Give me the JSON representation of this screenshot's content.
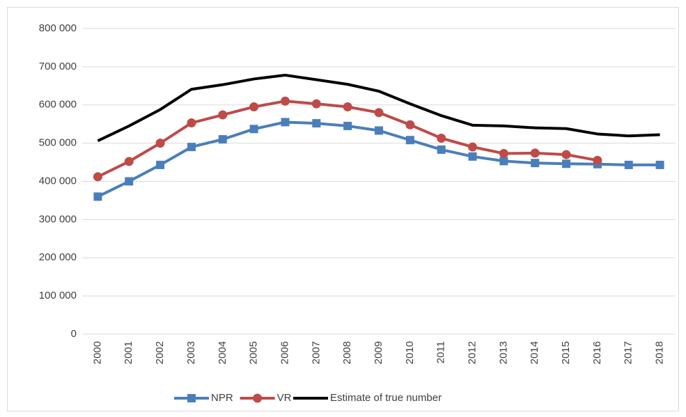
{
  "chart_data": {
    "type": "line",
    "categories": [
      "2000",
      "2001",
      "2002",
      "2003",
      "2004",
      "2005",
      "2006",
      "2007",
      "2008",
      "2009",
      "2010",
      "2011",
      "2012",
      "2013",
      "2014",
      "2015",
      "2016",
      "2017",
      "2018"
    ],
    "series": [
      {
        "name": "NPR",
        "color": "#4a7ebb",
        "marker": "square",
        "values": [
          360000,
          400000,
          443000,
          490000,
          510000,
          537000,
          555000,
          552000,
          545000,
          533000,
          508000,
          483000,
          465000,
          453000,
          448000,
          446000,
          445000,
          443000,
          443000
        ]
      },
      {
        "name": "VR",
        "color": "#be4b48",
        "marker": "circle",
        "values": [
          412000,
          452000,
          500000,
          553000,
          574000,
          595000,
          610000,
          603000,
          595000,
          580000,
          548000,
          513000,
          490000,
          473000,
          474000,
          470000,
          455000,
          null,
          null
        ]
      },
      {
        "name": "Estimate of true number",
        "color": "#000000",
        "marker": "none",
        "values": [
          506000,
          545000,
          588000,
          641000,
          653000,
          668000,
          678000,
          666000,
          654000,
          636000,
          603000,
          572000,
          547000,
          545000,
          540000,
          538000,
          524000,
          519000,
          522000
        ]
      }
    ],
    "ylim": [
      0,
      800000
    ],
    "yticks": [
      0,
      {
        "value": 100000,
        "label": "100 000"
      },
      {
        "value": 200000,
        "label": "200 000"
      },
      {
        "value": 300000,
        "label": "300 000"
      },
      {
        "value": 400000,
        "label": "400 000"
      },
      {
        "value": 500000,
        "label": "500 000"
      },
      {
        "value": 600000,
        "label": "600 000"
      },
      {
        "value": 700000,
        "label": "700 000"
      },
      {
        "value": 800000,
        "label": "800 000"
      }
    ],
    "grid": true,
    "legend": "bottom"
  }
}
